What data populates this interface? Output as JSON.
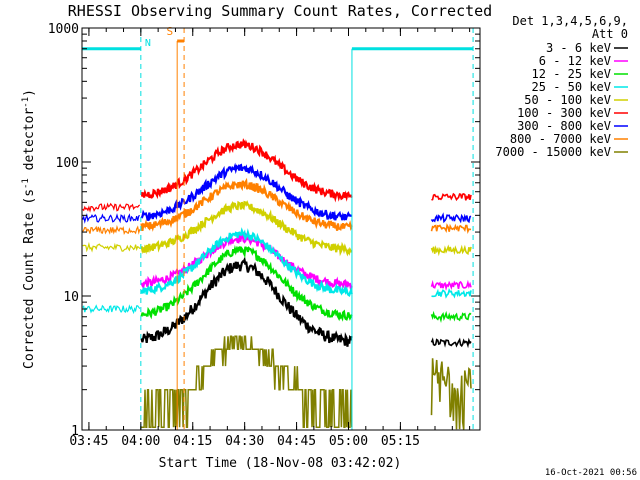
{
  "chart_data": {
    "type": "line",
    "title": "RHESSI Observing Summary Count Rates, Corrected",
    "xlabel": "Start Time (18-Nov-08 03:42:02)",
    "ylabel": "Corrected Count Rate (s",
    "ylabel_sup1": "-1",
    "ylabel_mid": " detector",
    "ylabel_sup2": "-1",
    "ylabel_end": ")",
    "yscale": "log",
    "ylim": [
      1,
      1000
    ],
    "xlim_minutes": [
      -17,
      98
    ],
    "x_ticks": [
      {
        "label": "03:45",
        "minute": -15
      },
      {
        "label": "04:00",
        "minute": 0
      },
      {
        "label": "04:15",
        "minute": 15
      },
      {
        "label": "04:30",
        "minute": 30
      },
      {
        "label": "04:45",
        "minute": 45
      },
      {
        "label": "05:00",
        "minute": 60
      },
      {
        "label": "05:15",
        "minute": 75
      }
    ],
    "y_ticks": [
      {
        "label": "1",
        "value": 1
      },
      {
        "label": "10",
        "value": 10
      },
      {
        "label": "100",
        "value": 100
      },
      {
        "label": "1000",
        "value": 1000
      }
    ],
    "legend_header": [
      "Det 1,3,4,5,6,9,",
      "Att 0"
    ],
    "series": [
      {
        "name": "3 - 6 keV",
        "color": "#000000",
        "plateau": 4.5,
        "peak": 17,
        "pre": 0
      },
      {
        "name": "6 - 12 keV",
        "color": "#ff00ff",
        "plateau": 12,
        "peak": 27,
        "pre": 0
      },
      {
        "name": "12 - 25 keV",
        "color": "#00e000",
        "plateau": 7,
        "peak": 22,
        "pre": 0
      },
      {
        "name": "25 - 50 keV",
        "color": "#00e8e8",
        "plateau": 10.5,
        "peak": 29,
        "pre": 8
      },
      {
        "name": "50 - 100 keV",
        "color": "#d0d000",
        "plateau": 22,
        "peak": 47,
        "pre": 23
      },
      {
        "name": "100 - 300 keV",
        "color": "#ff0000",
        "plateau": 55,
        "peak": 135,
        "pre": 46
      },
      {
        "name": "300 - 800 keV",
        "color": "#0000ff",
        "plateau": 38,
        "peak": 90,
        "pre": 38
      },
      {
        "name": "800 - 7000 keV",
        "color": "#ff8000",
        "plateau": 32,
        "peak": 68,
        "pre": 31
      },
      {
        "name": "7000 - 15000 keV",
        "color": "#808000",
        "plateau": 1.2,
        "peak": 4.5,
        "pre": 0
      }
    ],
    "time_windows": [
      {
        "label": "N",
        "kind": "night",
        "start_minute": -17,
        "end_minute": 0,
        "level": 700,
        "color": "#00e0e0"
      },
      {
        "label": "",
        "kind": "night",
        "start_minute": 61,
        "end_minute": 96,
        "level": 700,
        "color": "#00e0e0"
      },
      {
        "label": "S",
        "kind": "saa",
        "start_minute": 10.5,
        "end_minute": 12.5,
        "level": 800,
        "color": "#ff8000"
      }
    ],
    "timestamp": "16-Oct-2021 00:56"
  }
}
